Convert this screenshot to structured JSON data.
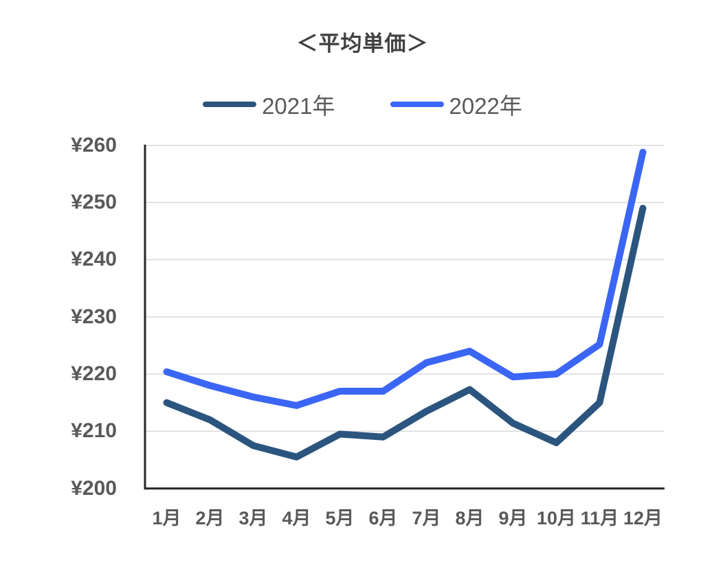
{
  "chart_data": {
    "type": "line",
    "title": "＜平均単価＞",
    "categories": [
      "1月",
      "2月",
      "3月",
      "4月",
      "5月",
      "6月",
      "7月",
      "8月",
      "9月",
      "10月",
      "11月",
      "12月"
    ],
    "series": [
      {
        "name": "2021年",
        "color": "#2B557E",
        "values": [
          215,
          212,
          207.5,
          205.5,
          209.5,
          209,
          213.5,
          217.3,
          211.4,
          208,
          215,
          249
        ]
      },
      {
        "name": "2022年",
        "color": "#3B66F5",
        "values": [
          220.4,
          218,
          216,
          214.5,
          217,
          217,
          222,
          224,
          219.5,
          220,
          225.2,
          258.8
        ]
      }
    ],
    "ylim": [
      200,
      260
    ],
    "y_tick_values": [
      200,
      210,
      220,
      230,
      240,
      250,
      260
    ],
    "y_tick_labels": [
      "¥200",
      "¥210",
      "¥220",
      "¥230",
      "¥240",
      "¥250",
      "¥260"
    ],
    "grid": true,
    "legend_position": "top",
    "colors": {
      "gridline": "#D9D9D9",
      "axis_spine": "#262626",
      "title_text": "#404040",
      "tick_text": "#595959",
      "background": "#FFFFFF"
    }
  }
}
